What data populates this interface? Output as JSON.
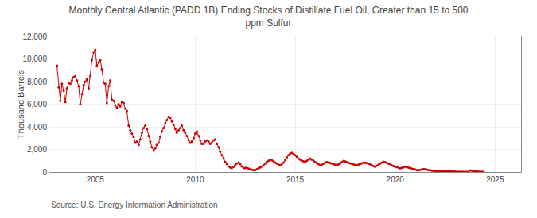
{
  "chart_data": {
    "type": "line",
    "title": "Monthly Central Atlantic (PADD 1B) Ending Stocks of Distillate Fuel Oil, Greater than 15 to 500\nppm Sulfur",
    "ylabel": "Thousand Barrels",
    "annotations": [
      "Source: U.S. Energy Information Administration"
    ],
    "color": "#cc0000",
    "marker": "circle",
    "line_style": "solid",
    "grid": true,
    "xlim": [
      2002.7,
      2026.3
    ],
    "xticks": [
      2005,
      2010,
      2015,
      2020,
      2025
    ],
    "ylim": [
      0,
      12000
    ],
    "yticks": [
      0,
      {
        "value": 2000,
        "label": "2,000"
      },
      {
        "value": 4000,
        "label": "4,000"
      },
      {
        "value": 6000,
        "label": "6,000"
      },
      {
        "value": 8000,
        "label": "8,000"
      },
      {
        "value": 10000,
        "label": "10,000"
      },
      {
        "value": 12000,
        "label": "12,000"
      }
    ],
    "x": [
      2003.08,
      2003.17,
      2003.25,
      2003.33,
      2003.42,
      2003.5,
      2003.58,
      2003.67,
      2003.75,
      2003.83,
      2003.92,
      2004.0,
      2004.08,
      2004.17,
      2004.25,
      2004.33,
      2004.42,
      2004.5,
      2004.58,
      2004.67,
      2004.75,
      2004.83,
      2004.92,
      2005.0,
      2005.08,
      2005.17,
      2005.25,
      2005.33,
      2005.42,
      2005.5,
      2005.58,
      2005.67,
      2005.75,
      2005.83,
      2005.92,
      2006.0,
      2006.08,
      2006.17,
      2006.25,
      2006.33,
      2006.42,
      2006.5,
      2006.58,
      2006.67,
      2006.75,
      2006.83,
      2006.92,
      2007.0,
      2007.08,
      2007.17,
      2007.25,
      2007.33,
      2007.42,
      2007.5,
      2007.58,
      2007.67,
      2007.75,
      2007.83,
      2007.92,
      2008.0,
      2008.08,
      2008.17,
      2008.25,
      2008.33,
      2008.42,
      2008.5,
      2008.58,
      2008.67,
      2008.75,
      2008.83,
      2008.92,
      2009.0,
      2009.08,
      2009.17,
      2009.25,
      2009.33,
      2009.42,
      2009.5,
      2009.58,
      2009.67,
      2009.75,
      2009.83,
      2009.92,
      2010.0,
      2010.08,
      2010.17,
      2010.25,
      2010.33,
      2010.42,
      2010.5,
      2010.58,
      2010.67,
      2010.75,
      2010.83,
      2010.92,
      2011.0,
      2011.08,
      2011.17,
      2011.25,
      2011.33,
      2011.42,
      2011.5,
      2011.58,
      2011.67,
      2011.75,
      2011.83,
      2011.92,
      2012.0,
      2012.08,
      2012.17,
      2012.25,
      2012.33,
      2012.42,
      2012.5,
      2012.58,
      2012.67,
      2012.75,
      2012.83,
      2012.92,
      2013.0,
      2013.08,
      2013.17,
      2013.25,
      2013.33,
      2013.42,
      2013.5,
      2013.58,
      2013.67,
      2013.75,
      2013.83,
      2013.92,
      2014.0,
      2014.08,
      2014.17,
      2014.25,
      2014.33,
      2014.42,
      2014.5,
      2014.58,
      2014.67,
      2014.75,
      2014.83,
      2014.92,
      2015.0,
      2015.08,
      2015.17,
      2015.25,
      2015.33,
      2015.42,
      2015.5,
      2015.58,
      2015.67,
      2015.75,
      2015.83,
      2015.92,
      2016.0,
      2016.08,
      2016.17,
      2016.25,
      2016.33,
      2016.42,
      2016.5,
      2016.58,
      2016.67,
      2016.75,
      2016.83,
      2016.92,
      2017.0,
      2017.08,
      2017.17,
      2017.25,
      2017.33,
      2017.42,
      2017.5,
      2017.58,
      2017.67,
      2017.75,
      2017.83,
      2017.92,
      2018.0,
      2018.08,
      2018.17,
      2018.25,
      2018.33,
      2018.42,
      2018.5,
      2018.58,
      2018.67,
      2018.75,
      2018.83,
      2018.92,
      2019.0,
      2019.08,
      2019.17,
      2019.25,
      2019.33,
      2019.42,
      2019.5,
      2019.58,
      2019.67,
      2019.75,
      2019.83,
      2019.92,
      2020.0,
      2020.08,
      2020.17,
      2020.25,
      2020.33,
      2020.42,
      2020.5,
      2020.58,
      2020.67,
      2020.75,
      2020.83,
      2020.92,
      2021.0,
      2021.08,
      2021.17,
      2021.25,
      2021.33,
      2021.42,
      2021.5,
      2021.58,
      2021.67,
      2021.75,
      2021.83,
      2021.92,
      2022.0,
      2022.08,
      2022.17,
      2022.25,
      2022.33,
      2022.42,
      2022.5,
      2022.58,
      2022.67,
      2022.75,
      2022.83,
      2022.92,
      2023.0,
      2023.08,
      2023.17,
      2023.25,
      2023.33,
      2023.42,
      2023.5,
      2023.58,
      2023.67,
      2023.75,
      2023.83,
      2023.92,
      2024.0,
      2024.08,
      2024.17,
      2024.25,
      2024.33,
      2024.42
    ],
    "values": [
      9400,
      7500,
      6300,
      7800,
      7200,
      6200,
      7400,
      7900,
      7800,
      8100,
      8400,
      8500,
      8100,
      7600,
      6000,
      6900,
      7700,
      8000,
      8200,
      7400,
      8500,
      9900,
      10600,
      10800,
      9400,
      9700,
      9900,
      9100,
      7900,
      7800,
      6100,
      7600,
      8100,
      6400,
      6300,
      5900,
      5700,
      6000,
      5800,
      6200,
      6100,
      5600,
      5400,
      4100,
      3700,
      3400,
      3100,
      2600,
      2700,
      2400,
      2900,
      3500,
      3900,
      4100,
      3800,
      3200,
      2700,
      2200,
      1900,
      2100,
      2400,
      2600,
      3100,
      3600,
      3900,
      4300,
      4600,
      4900,
      4800,
      4500,
      4200,
      3800,
      3500,
      3700,
      3900,
      4100,
      3700,
      3500,
      3200,
      2800,
      2600,
      2700,
      3000,
      3400,
      3600,
      3200,
      2800,
      2500,
      2500,
      2700,
      2800,
      2700,
      2500,
      2600,
      2800,
      2900,
      2500,
      2200,
      1800,
      1500,
      1200,
      900,
      700,
      500,
      400,
      350,
      450,
      600,
      750,
      850,
      700,
      500,
      350,
      350,
      380,
      300,
      250,
      200,
      180,
      200,
      250,
      350,
      400,
      500,
      600,
      750,
      900,
      1000,
      1100,
      1050,
      950,
      850,
      750,
      650,
      600,
      700,
      850,
      1050,
      1300,
      1500,
      1650,
      1700,
      1600,
      1500,
      1350,
      1200,
      1100,
      1000,
      950,
      900,
      1000,
      1100,
      1200,
      1100,
      1000,
      900,
      800,
      700,
      600,
      650,
      750,
      850,
      900,
      850,
      800,
      750,
      700,
      650,
      600,
      680,
      780,
      880,
      980,
      940,
      880,
      830,
      780,
      730,
      680,
      640,
      600,
      660,
      720,
      780,
      840,
      830,
      790,
      740,
      680,
      590,
      520,
      480,
      560,
      650,
      750,
      850,
      920,
      880,
      820,
      760,
      700,
      600,
      520,
      480,
      430,
      380,
      340,
      370,
      420,
      470,
      440,
      390,
      350,
      300,
      260,
      220,
      180,
      150,
      180,
      220,
      260,
      240,
      210,
      180,
      160,
      130,
      100,
      80,
      60,
      50,
      60,
      80,
      90,
      80,
      70,
      60,
      55,
      50,
      45,
      40,
      35,
      25,
      20,
      20,
      25,
      20,
      15,
      10,
      140,
      120,
      90,
      70,
      50,
      35,
      25,
      20,
      15
    ]
  }
}
